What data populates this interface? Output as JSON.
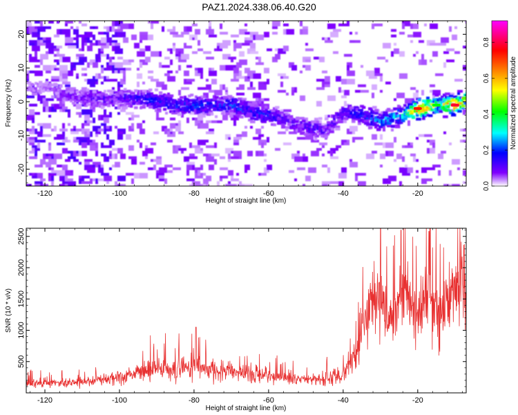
{
  "title": "PAZ1.2024.338.06.40.G20",
  "chart_data": [
    {
      "type": "heatmap",
      "xlabel": "Height of straight line (km)",
      "ylabel": "Frequency (Hz)",
      "xlim": [
        -125,
        -7
      ],
      "ylim": [
        -25,
        24
      ],
      "xticks": [
        -120,
        -100,
        -80,
        -60,
        -40,
        -20
      ],
      "yticks": [
        -20,
        -10,
        0,
        10,
        20
      ],
      "colorbar": {
        "label": "Normalized spectral amplitude",
        "ticks": [
          0.0,
          0.2,
          0.4,
          0.6,
          0.8
        ],
        "range": [
          0,
          0.92
        ],
        "colors": [
          "#ffffff",
          "#8000ff",
          "#0000ff",
          "#00ffff",
          "#00ff00",
          "#ffff00",
          "#ff8000",
          "#ff0000",
          "#ff00ff"
        ]
      },
      "ridge": {
        "x": [
          -120,
          -115,
          -110,
          -105,
          -100,
          -95,
          -90,
          -85,
          -80,
          -75,
          -70,
          -65,
          -60,
          -55,
          -50,
          -45,
          -40,
          -35,
          -30,
          -25,
          -20,
          -15,
          -10,
          -7
        ],
        "frequency": [
          4,
          2,
          1,
          1,
          1,
          1,
          0,
          -1,
          -1,
          -1,
          -1,
          -3,
          -4,
          -6,
          -8,
          -8,
          -3,
          -4,
          -6,
          -4,
          -2,
          -1,
          -1,
          1
        ],
        "amplitude": [
          0.05,
          0.08,
          0.1,
          0.12,
          0.12,
          0.18,
          0.2,
          0.2,
          0.22,
          0.2,
          0.22,
          0.2,
          0.18,
          0.12,
          0.14,
          0.12,
          0.14,
          0.2,
          0.28,
          0.3,
          0.8,
          0.45,
          0.85,
          0.5
        ]
      }
    },
    {
      "type": "line",
      "xlabel": "Height of straight line (km)",
      "ylabel": "SNR (10 * v/v)",
      "xlim": [
        -125,
        -7
      ],
      "ylim": [
        0,
        2630
      ],
      "xticks": [
        -120,
        -100,
        -80,
        -60,
        -40,
        -20
      ],
      "yticks": [
        500,
        1000,
        1500,
        2000,
        2500
      ],
      "line_color": "#e83030",
      "series": [
        {
          "x": [
            -125,
            -120,
            -115,
            -110,
            -105,
            -100,
            -95,
            -90,
            -85,
            -80,
            -75,
            -70,
            -65,
            -60,
            -55,
            -50,
            -45,
            -40,
            -38,
            -36,
            -34,
            -32,
            -30,
            -28,
            -26,
            -24,
            -22,
            -20,
            -18,
            -16,
            -14,
            -12,
            -10,
            -8,
            -7
          ],
          "values": [
            150,
            160,
            165,
            180,
            220,
            250,
            330,
            390,
            380,
            420,
            380,
            330,
            310,
            260,
            230,
            210,
            220,
            300,
            500,
            700,
            1150,
            1500,
            1350,
            1100,
            1250,
            1700,
            1500,
            1250,
            1750,
            1400,
            1250,
            1600,
            1700,
            1850,
            1500
          ],
          "peaks": [
            {
              "x": -79.5,
              "y": 1050
            },
            {
              "x": -24.5,
              "y": 2600
            },
            {
              "x": -17,
              "y": 2580
            }
          ]
        }
      ]
    }
  ]
}
